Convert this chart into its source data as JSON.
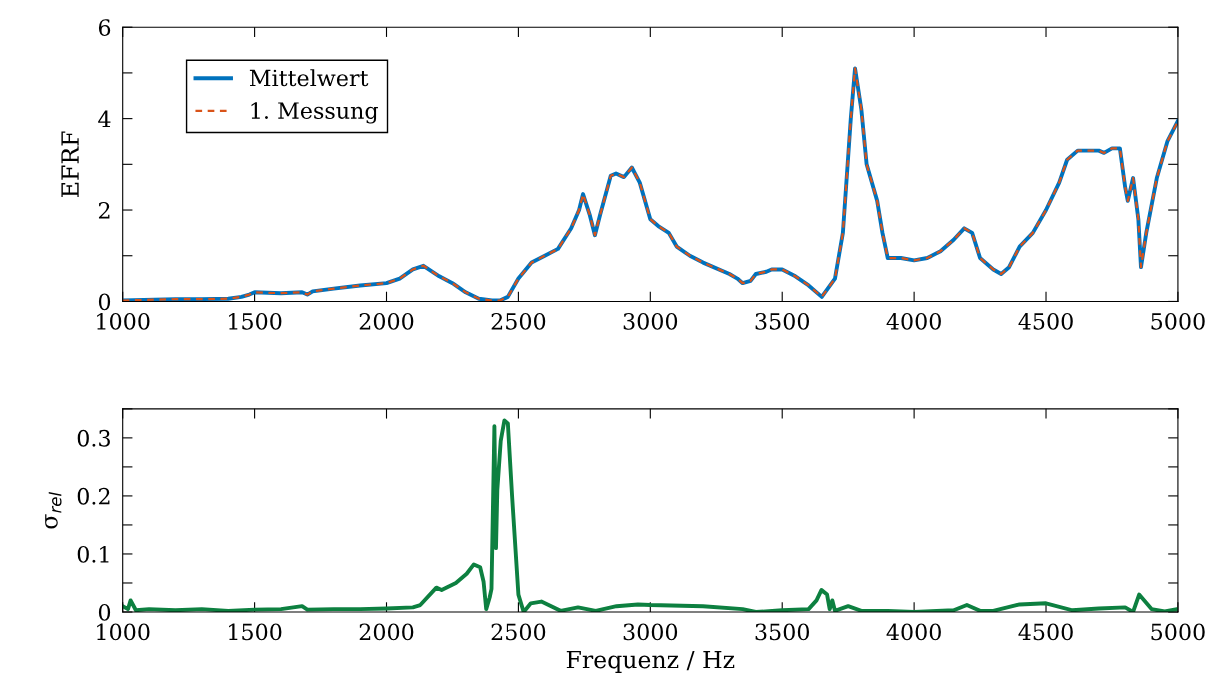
{
  "chart_data": [
    {
      "type": "line",
      "ylabel": "EFRF",
      "xlim": [
        1000,
        5000
      ],
      "xticks": [
        1000,
        1500,
        2000,
        2500,
        3000,
        3500,
        4000,
        4500,
        5000
      ],
      "ylim": [
        0,
        6
      ],
      "yticks": [
        0,
        {
          "value": 1,
          "label": null
        },
        2,
        {
          "value": 3,
          "label": null
        },
        4,
        {
          "value": 5,
          "label": null
        },
        6
      ],
      "legend": "top left",
      "grid": false,
      "x": [
        1000,
        1200,
        1300,
        1400,
        1450,
        1480,
        1500,
        1600,
        1680,
        1700,
        1720,
        1800,
        1900,
        2000,
        2050,
        2100,
        2140,
        2200,
        2250,
        2300,
        2350,
        2400,
        2430,
        2460,
        2500,
        2550,
        2600,
        2650,
        2700,
        2730,
        2745,
        2770,
        2790,
        2810,
        2850,
        2870,
        2900,
        2930,
        2960,
        3000,
        3030,
        3070,
        3100,
        3150,
        3200,
        3300,
        3330,
        3350,
        3380,
        3400,
        3440,
        3460,
        3500,
        3550,
        3600,
        3650,
        3700,
        3730,
        3760,
        3776,
        3800,
        3820,
        3860,
        3880,
        3900,
        3950,
        4000,
        4050,
        4100,
        4150,
        4190,
        4220,
        4250,
        4300,
        4330,
        4360,
        4400,
        4450,
        4500,
        4550,
        4580,
        4620,
        4700,
        4720,
        4750,
        4780,
        4800,
        4810,
        4830,
        4850,
        4860,
        4880,
        4920,
        4960,
        5000
      ],
      "series": [
        {
          "name": "Mittelwert",
          "color": "#0072bd",
          "line_style": "solid",
          "values": [
            0.02,
            0.05,
            0.05,
            0.06,
            0.1,
            0.15,
            0.2,
            0.18,
            0.2,
            0.15,
            0.22,
            0.28,
            0.35,
            0.4,
            0.5,
            0.7,
            0.78,
            0.55,
            0.4,
            0.2,
            0.06,
            0.02,
            0.02,
            0.1,
            0.5,
            0.85,
            1.0,
            1.15,
            1.6,
            2.0,
            2.35,
            1.9,
            1.45,
            1.9,
            2.75,
            2.8,
            2.72,
            2.93,
            2.6,
            1.8,
            1.65,
            1.5,
            1.2,
            1.0,
            0.85,
            0.6,
            0.5,
            0.4,
            0.45,
            0.6,
            0.65,
            0.7,
            0.7,
            0.55,
            0.35,
            0.1,
            0.5,
            1.5,
            4.0,
            5.1,
            4.2,
            3.0,
            2.2,
            1.5,
            0.95,
            0.95,
            0.9,
            0.95,
            1.1,
            1.35,
            1.6,
            1.5,
            0.95,
            0.7,
            0.6,
            0.75,
            1.2,
            1.5,
            2.0,
            2.6,
            3.1,
            3.3,
            3.3,
            3.25,
            3.35,
            3.35,
            2.5,
            2.2,
            2.7,
            1.8,
            0.75,
            1.5,
            2.7,
            3.5,
            3.95
          ]
        },
        {
          "name": "1. Messung",
          "color": "#d95319",
          "line_style": "dashed",
          "values": [
            0.02,
            0.05,
            0.05,
            0.06,
            0.1,
            0.15,
            0.2,
            0.18,
            0.2,
            0.15,
            0.22,
            0.28,
            0.35,
            0.4,
            0.5,
            0.7,
            0.78,
            0.55,
            0.4,
            0.2,
            0.06,
            0.02,
            0.02,
            0.1,
            0.5,
            0.85,
            1.0,
            1.15,
            1.6,
            2.0,
            2.35,
            1.9,
            1.45,
            1.9,
            2.75,
            2.8,
            2.72,
            2.93,
            2.6,
            1.8,
            1.65,
            1.5,
            1.2,
            1.0,
            0.85,
            0.6,
            0.5,
            0.4,
            0.45,
            0.6,
            0.65,
            0.7,
            0.7,
            0.55,
            0.35,
            0.1,
            0.5,
            1.5,
            4.0,
            5.1,
            4.2,
            3.0,
            2.2,
            1.5,
            0.95,
            0.95,
            0.9,
            0.95,
            1.1,
            1.35,
            1.6,
            1.5,
            0.95,
            0.7,
            0.6,
            0.75,
            1.2,
            1.5,
            2.0,
            2.6,
            3.1,
            3.3,
            3.3,
            3.25,
            3.35,
            3.35,
            2.5,
            2.2,
            2.7,
            1.8,
            0.75,
            1.5,
            2.7,
            3.5,
            3.95
          ]
        }
      ]
    },
    {
      "type": "line",
      "ylabel": "σ$_{rel}$",
      "xlabel": "Frequenz / Hz",
      "xlim": [
        1000,
        5000
      ],
      "xticks": [
        1000,
        1500,
        2000,
        2500,
        3000,
        3500,
        4000,
        4500,
        5000
      ],
      "ylim": [
        0,
        0.35
      ],
      "yticks": [
        0,
        {
          "value": 0.05,
          "label": null
        },
        0.1,
        {
          "value": 0.15,
          "label": null
        },
        0.2,
        {
          "value": 0.25,
          "label": null
        },
        0.3,
        {
          "value": 0.35,
          "label": null
        }
      ],
      "grid": false,
      "x": [
        1000,
        1020,
        1030,
        1050,
        1100,
        1200,
        1300,
        1400,
        1500,
        1600,
        1680,
        1700,
        1800,
        1900,
        2000,
        2100,
        2128,
        2189,
        2209,
        2263,
        2304,
        2331,
        2355,
        2368,
        2378,
        2391,
        2398,
        2409,
        2415,
        2420,
        2433,
        2447,
        2460,
        2476,
        2500,
        2520,
        2547,
        2587,
        2660,
        2726,
        2793,
        2872,
        2953,
        3000,
        3200,
        3350,
        3400,
        3500,
        3600,
        3630,
        3649,
        3670,
        3680,
        3690,
        3700,
        3750,
        3800,
        3900,
        4000,
        4150,
        4200,
        4250,
        4300,
        4400,
        4500,
        4600,
        4700,
        4800,
        4830,
        4853,
        4900,
        4950,
        5000
      ],
      "series": [
        {
          "color": "#0d8040",
          "line_style": "solid",
          "values": [
            0.01,
            0.005,
            0.02,
            0.003,
            0.005,
            0.003,
            0.005,
            0.002,
            0.004,
            0.005,
            0.01,
            0.004,
            0.005,
            0.005,
            0.006,
            0.008,
            0.012,
            0.042,
            0.038,
            0.05,
            0.066,
            0.082,
            0.077,
            0.052,
            0.005,
            0.025,
            0.04,
            0.32,
            0.11,
            0.21,
            0.295,
            0.33,
            0.325,
            0.2,
            0.03,
            0.0,
            0.015,
            0.018,
            0.002,
            0.008,
            0.002,
            0.01,
            0.013,
            0.012,
            0.01,
            0.005,
            0.0,
            0.003,
            0.005,
            0.02,
            0.038,
            0.03,
            0.005,
            0.02,
            0.002,
            0.01,
            0.002,
            0.002,
            0.0,
            0.003,
            0.012,
            0.002,
            0.002,
            0.013,
            0.015,
            0.003,
            0.006,
            0.008,
            0.0,
            0.03,
            0.005,
            0.001,
            0.005
          ]
        }
      ]
    }
  ]
}
